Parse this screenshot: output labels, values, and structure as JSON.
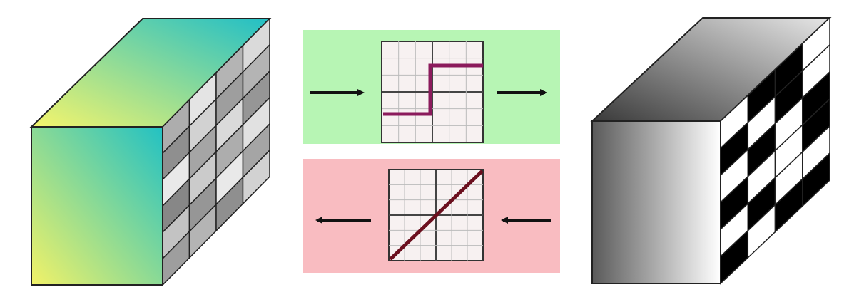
{
  "diagram": {
    "left_block": {
      "front_gradient": [
        "#f2f268",
        "#22c1c3"
      ],
      "top_gradient": [
        "#f5f56c",
        "#22bfc6"
      ],
      "side_grid": {
        "rows": 6,
        "cols": 4,
        "cells": [
          [
            0.55,
            0.92,
            0.6,
            0.85
          ],
          [
            0.35,
            0.8,
            0.45,
            0.6
          ],
          [
            0.95,
            0.5,
            0.85,
            0.4
          ],
          [
            0.3,
            0.75,
            0.55,
            0.9
          ],
          [
            0.7,
            0.4,
            0.95,
            0.5
          ],
          [
            0.45,
            0.6,
            0.35,
            0.8
          ]
        ]
      }
    },
    "top_panel": {
      "background": "#b7f5b4",
      "curve_color": "#8b1a5c",
      "curve": "step",
      "arrow_direction": "right"
    },
    "bottom_panel": {
      "background": "#f9bcc1",
      "curve_color": "#6b0f1e",
      "curve": "linear",
      "arrow_direction": "left"
    },
    "right_block": {
      "front_gradient": [
        "#5a5a5a",
        "#ffffff"
      ],
      "top_gradient": [
        "#3a3a3a",
        "#e6e6e6"
      ],
      "side_grid": {
        "rows": 6,
        "cols": 4,
        "cells": [
          [
            0,
            1,
            1,
            0
          ],
          [
            1,
            0,
            1,
            0
          ],
          [
            0,
            1,
            0,
            1
          ],
          [
            1,
            0,
            0,
            1
          ],
          [
            0,
            1,
            0,
            0
          ],
          [
            1,
            0,
            1,
            1
          ]
        ]
      }
    }
  }
}
